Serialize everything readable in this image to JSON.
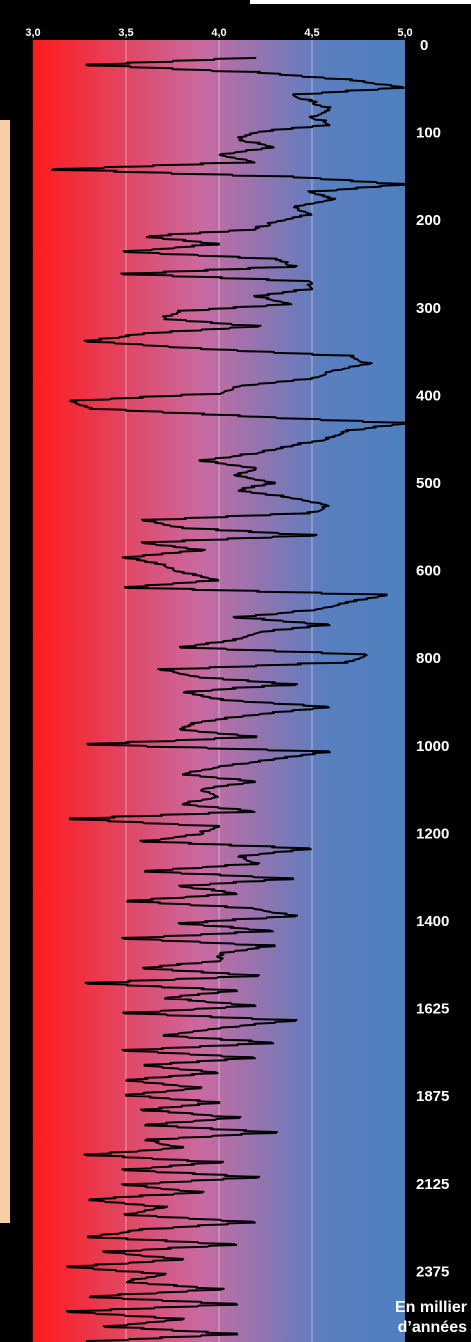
{
  "chart_data": {
    "type": "line",
    "orientation": "vertical",
    "title": "",
    "xlabel": "",
    "ylabel": "En millier d’années",
    "x_ticks": [
      "3,0",
      "3,5",
      "4,0",
      "4,5",
      "5,0"
    ],
    "xlim": [
      3.0,
      5.0
    ],
    "y_ticks": [
      "0",
      "100",
      "200",
      "300",
      "400",
      "500",
      "600",
      "800",
      "1000",
      "1200",
      "1400",
      "1625",
      "1875",
      "2125",
      "2375"
    ],
    "grid": true,
    "background_gradient": [
      "#ff1a1a",
      "#c96aa0",
      "#5a7fc0",
      "#4f7fc0"
    ],
    "line_color": "#000000",
    "series": [
      {
        "values": [
          4.2,
          3.3,
          4.2,
          4.7,
          5.0,
          4.4,
          4.5,
          4.6,
          4.5,
          4.6,
          4.2,
          4.1,
          4.3,
          4.0,
          4.2,
          3.1,
          4.4,
          5.0,
          4.5,
          4.6,
          4.4,
          4.5,
          4.3,
          4.2,
          3.6,
          4.0,
          3.5,
          4.3,
          4.4,
          3.5,
          4.5,
          4.5,
          4.2,
          4.4,
          3.8,
          3.7,
          4.2,
          3.6,
          3.3,
          3.9,
          4.7,
          4.8,
          4.6,
          4.5,
          4.1,
          4.0,
          3.2,
          3.3,
          4.1,
          5.0,
          4.7,
          4.6,
          4.4,
          4.2,
          3.9,
          4.2,
          4.1,
          4.3,
          4.1,
          4.4,
          4.6,
          4.5,
          3.6,
          3.8,
          4.5,
          3.6,
          3.9,
          3.5,
          3.7,
          3.8,
          4.0,
          3.5,
          4.9,
          4.7,
          4.5,
          4.1,
          4.6,
          4.2,
          4.1,
          3.8,
          4.8,
          4.7,
          3.7,
          3.9,
          4.4,
          3.8,
          4.0,
          4.6,
          4.2,
          3.9,
          3.8,
          4.2,
          3.3,
          4.6,
          4.3,
          4.0,
          3.8,
          4.2,
          3.9,
          4.0,
          3.8,
          4.2,
          3.2,
          4.0,
          3.9,
          3.6,
          4.5,
          4.1,
          4.2,
          3.6,
          4.4,
          3.8,
          4.1,
          3.5,
          4.2,
          4.4,
          3.8,
          4.3,
          3.5,
          4.3,
          4.0,
          4.0,
          3.6,
          4.2,
          3.3,
          4.1,
          3.7,
          4.2,
          3.5,
          4.4,
          4.0,
          3.7,
          4.3,
          3.5,
          4.2,
          3.6,
          4.0,
          3.5,
          3.9,
          3.5,
          4.0,
          3.6,
          4.1,
          3.6,
          4.3,
          3.6,
          3.8,
          3.3,
          4.0,
          3.5,
          4.2,
          3.5,
          3.9,
          3.3,
          3.7,
          3.5,
          4.2,
          3.6,
          3.3,
          4.1,
          3.4,
          3.8,
          3.2,
          3.7,
          3.5,
          4.0,
          3.3,
          4.1,
          3.2,
          3.8,
          3.4,
          4.1,
          3.3
        ]
      }
    ]
  }
}
